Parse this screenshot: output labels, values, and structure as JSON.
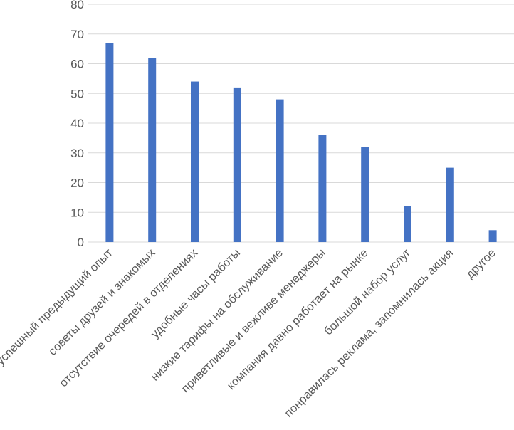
{
  "chart_data": {
    "type": "bar",
    "categories": [
      "успешный предыдущий опыт",
      "советы друзей и знакомых",
      "отсутствие очередей в отделениях",
      "удобные часы работы",
      "низкие тарифы на обслуживание",
      "приветливые и вежливе менеджеры",
      "компания давно работает на рынке",
      "большой набор услуг",
      "понравилась реклама, запомнилась акция",
      "другое"
    ],
    "values": [
      67,
      62,
      54,
      52,
      48,
      36,
      32,
      12,
      25,
      4
    ],
    "ylim": [
      0,
      80
    ],
    "yticks": [
      0,
      10,
      20,
      30,
      40,
      50,
      60,
      70,
      80
    ],
    "grid": true,
    "legend": "none",
    "bar_color": "#4472c4",
    "grid_color": "#d9d9d9"
  }
}
